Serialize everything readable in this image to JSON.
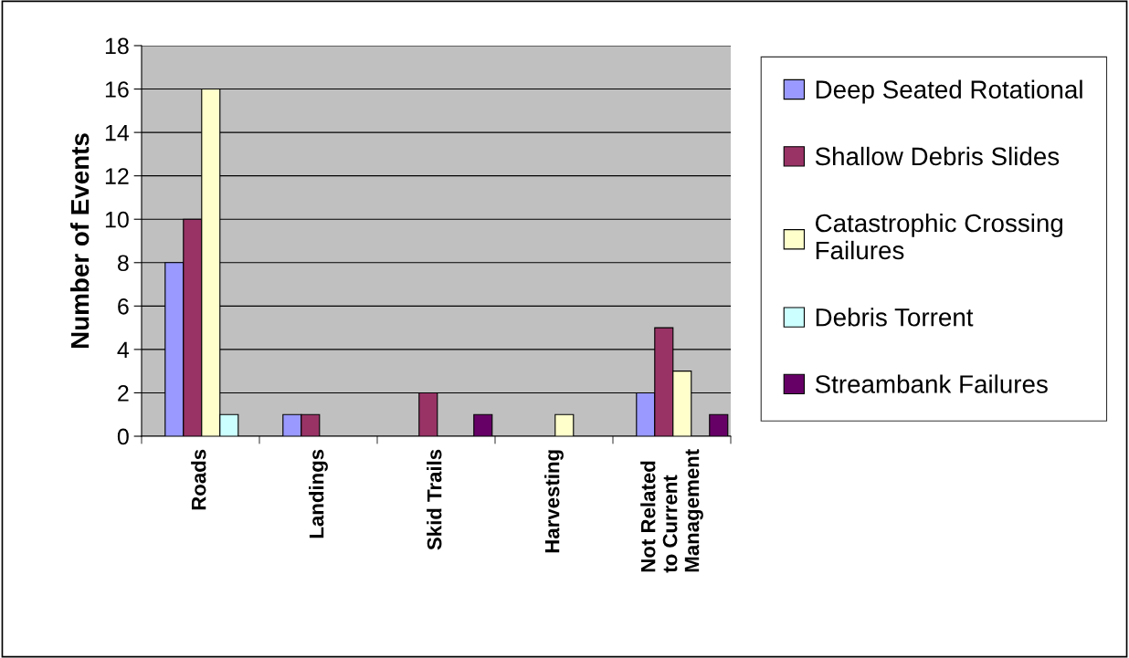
{
  "chart_data": {
    "type": "bar",
    "ylabel": "Number of Events",
    "categories": [
      "Roads",
      "Landings",
      "Skid Trails",
      "Harvesting",
      "Not Related\nto Current\nManagement"
    ],
    "series": [
      {
        "name": "Deep Seated Rotational",
        "color": "#9999ff",
        "values": [
          8,
          1,
          null,
          null,
          2
        ]
      },
      {
        "name": "Shallow Debris Slides",
        "color": "#993366",
        "values": [
          10,
          1,
          2,
          null,
          5
        ]
      },
      {
        "name": "Catastrophic Crossing\nFailures",
        "color": "#ffffcc",
        "values": [
          16,
          null,
          null,
          1,
          3
        ]
      },
      {
        "name": "Debris Torrent",
        "color": "#ccffff",
        "values": [
          1,
          null,
          null,
          null,
          null
        ]
      },
      {
        "name": "Streambank Failures",
        "color": "#660066",
        "values": [
          null,
          null,
          1,
          null,
          1
        ]
      }
    ],
    "ylim": [
      0,
      18
    ],
    "yticks": [
      0,
      2,
      4,
      6,
      8,
      10,
      12,
      14,
      16,
      18
    ],
    "grid": "y",
    "legend": "right"
  }
}
